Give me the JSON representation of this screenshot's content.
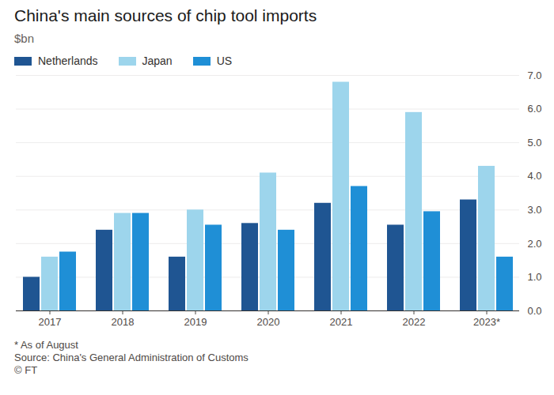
{
  "chart_data": {
    "type": "bar",
    "title": "China's main sources of chip tool imports",
    "subtitle": "$bn",
    "footnote": "* As of August",
    "source": "Source: China's General Administration of Customs",
    "credit": "© FT",
    "categories": [
      "2017",
      "2018",
      "2019",
      "2020",
      "2021",
      "2022",
      "2023*"
    ],
    "series": [
      {
        "name": "Netherlands",
        "color": "#1f5592",
        "values": [
          1.0,
          2.4,
          1.6,
          2.6,
          3.2,
          2.55,
          3.3
        ]
      },
      {
        "name": "Japan",
        "color": "#9dd5ec",
        "values": [
          1.6,
          2.9,
          3.0,
          4.1,
          6.8,
          5.9,
          4.3
        ]
      },
      {
        "name": "US",
        "color": "#1f8fd6",
        "values": [
          1.75,
          2.9,
          2.55,
          2.4,
          3.7,
          2.95,
          1.6
        ]
      }
    ],
    "ylim": [
      0,
      7
    ],
    "yticks": [
      0,
      1,
      2,
      3,
      4,
      5,
      6,
      7
    ],
    "grid": true,
    "legend": "top-left"
  }
}
